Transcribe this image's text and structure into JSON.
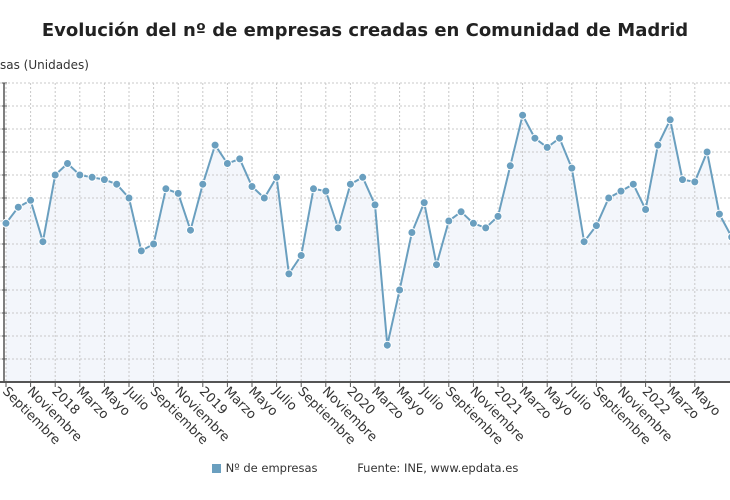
{
  "chart_data": {
    "type": "line",
    "title": "Evolución del nº de empresas creadas en Comunidad de Madrid",
    "ylabel": "sas (Unidades)",
    "xlabel": "",
    "x_tick_labels": [
      "Septiembre",
      "Noviembre",
      "2018",
      "Marzo",
      "Mayo",
      "Julio",
      "Septiembre",
      "Noviembre",
      "2019",
      "Marzo",
      "Mayo",
      "Julio",
      "Septiembre",
      "Noviembre",
      "2020",
      "Marzo",
      "Mayo",
      "Julio",
      "Septiembre",
      "Noviembre",
      "2021",
      "Marzo",
      "Mayo",
      "Julio",
      "Septiembre",
      "Noviembre",
      "2022",
      "Marzo",
      "Mayo"
    ],
    "y_units_note_hidden": null,
    "ylim": [
      0,
      13
    ],
    "grid": true,
    "legend_position": "bottom",
    "series": [
      {
        "name": "Nº de empresas",
        "color": "#6a9fbf",
        "values": [
          6.9,
          7.6,
          7.9,
          6.1,
          9.0,
          9.5,
          9.0,
          8.9,
          8.8,
          8.6,
          8.0,
          5.7,
          6.0,
          8.4,
          8.2,
          6.6,
          8.6,
          10.3,
          9.5,
          9.7,
          8.5,
          8.0,
          8.9,
          4.7,
          5.5,
          8.4,
          8.3,
          6.7,
          8.6,
          8.9,
          7.7,
          1.6,
          4.0,
          6.5,
          7.8,
          5.1,
          7.0,
          7.4,
          6.9,
          6.7,
          7.2,
          9.4,
          11.6,
          10.6,
          10.2,
          10.6,
          9.3,
          6.1,
          6.8,
          8.0,
          8.3,
          8.6,
          7.5,
          10.3,
          11.4,
          8.8,
          8.7,
          10.0,
          7.3,
          6.3
        ]
      }
    ]
  },
  "legend": {
    "series_label": "Nº de empresas",
    "source": "Fuente: INE, www.epdata.es"
  }
}
